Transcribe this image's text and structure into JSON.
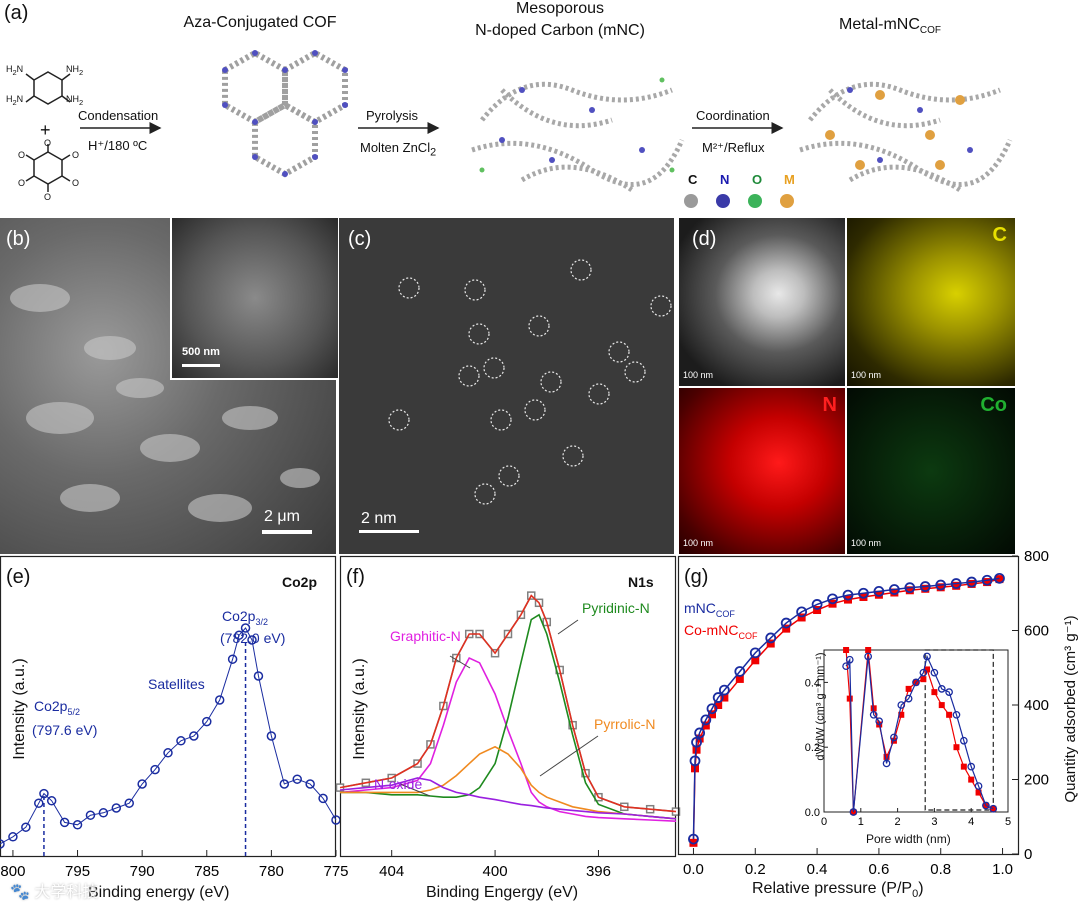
{
  "panels": {
    "a": {
      "label": "(a)"
    },
    "b": {
      "label": "(b)"
    },
    "c": {
      "label": "(c)"
    },
    "d": {
      "label": "(d)"
    },
    "e": {
      "label": "(e)"
    },
    "f": {
      "label": "(f)"
    },
    "g": {
      "label": "(g)"
    }
  },
  "scheme": {
    "title1": "Aza-Conjugated COF",
    "title2_line1": "Mesoporous",
    "title2_line2": "N-doped Carbon (mNC)",
    "title3_main": "Metal-mNC",
    "title3_sub": "COF",
    "step1_top": "Condensation",
    "step1_bottom": "H⁺/180 ºC",
    "step2_top": "Pyrolysis",
    "step2_bottom_main": "Molten ZnCl",
    "step2_bottom_sub": "2",
    "step3_top": "Coordination",
    "step3_bottom": "M²⁺/Reflux",
    "reagent_plus": "+",
    "nh2": "NH",
    "nh2_sub": "2",
    "o": "O",
    "legend": [
      {
        "label": "C",
        "color": "#777777",
        "ball": "#9a9a9a"
      },
      {
        "label": "N",
        "color": "#1a1ab0",
        "ball": "#3a3aa8"
      },
      {
        "label": "O",
        "color": "#1f8a3a",
        "ball": "#3cb35a"
      },
      {
        "label": "M",
        "color": "#e8a020",
        "ball": "#e0a040"
      }
    ]
  },
  "images": {
    "b_inset_scale": "500 nm",
    "b_scale": "2 μm",
    "c_scale": "2 nm",
    "d_scale": "100 nm",
    "d_maps": [
      {
        "label": "C",
        "color": "#e8e000"
      },
      {
        "label": "N",
        "color": "#ff2020"
      },
      {
        "label": "Co",
        "color": "#20b030"
      }
    ]
  },
  "chart_data": [
    {
      "type": "line",
      "panel": "e",
      "title": "Co2p",
      "xlabel": "Binding energy (eV)",
      "ylabel": "Intensity (a.u.)",
      "xlim": [
        801,
        775
      ],
      "xticks": [
        800,
        795,
        790,
        785,
        780,
        775
      ],
      "x": [
        801,
        800,
        799,
        798,
        797.6,
        797,
        796,
        795,
        794,
        793,
        792,
        791,
        790,
        789,
        788,
        787,
        786,
        785,
        784,
        783,
        782.5,
        782,
        781.5,
        781,
        780,
        779,
        778,
        777,
        776,
        775
      ],
      "values": [
        0.05,
        0.08,
        0.12,
        0.22,
        0.26,
        0.23,
        0.14,
        0.13,
        0.17,
        0.18,
        0.2,
        0.22,
        0.3,
        0.36,
        0.43,
        0.48,
        0.5,
        0.56,
        0.65,
        0.82,
        0.92,
        0.95,
        0.9,
        0.75,
        0.5,
        0.3,
        0.32,
        0.3,
        0.24,
        0.15
      ],
      "annotations": [
        {
          "text_main": "Co2p",
          "text_sub": "3/2",
          "value": "(782.0 eV)",
          "x": 782.0
        },
        {
          "text_main": "Co2p",
          "text_sub": "5/2",
          "value": "(797.6 eV)",
          "x": 797.6
        },
        {
          "text": "Satellites"
        }
      ]
    },
    {
      "type": "line",
      "panel": "f",
      "title": "N1s",
      "xlabel": "Binding Engergy (eV)",
      "ylabel": "Intensity (a.u.)",
      "xlim": [
        406,
        393
      ],
      "xticks": [
        404,
        400,
        396
      ],
      "x": [
        406,
        405,
        404,
        403,
        402.5,
        402,
        401.5,
        401,
        400.6,
        400,
        399.5,
        399,
        398.6,
        398.3,
        398,
        397.5,
        397,
        396.5,
        396,
        395,
        394,
        393
      ],
      "series": [
        {
          "name": "data",
          "color": "#808080",
          "values": [
            0.16,
            0.18,
            0.2,
            0.26,
            0.34,
            0.5,
            0.7,
            0.8,
            0.8,
            0.72,
            0.8,
            0.88,
            0.96,
            0.93,
            0.85,
            0.65,
            0.42,
            0.22,
            0.12,
            0.08,
            0.07,
            0.06
          ]
        },
        {
          "name": "fit",
          "color": "#e03020",
          "values": [
            0.16,
            0.18,
            0.2,
            0.26,
            0.34,
            0.5,
            0.7,
            0.8,
            0.8,
            0.72,
            0.8,
            0.88,
            0.96,
            0.93,
            0.85,
            0.65,
            0.42,
            0.22,
            0.12,
            0.08,
            0.07,
            0.06
          ]
        },
        {
          "name": "Graphitic-N",
          "color": "#e020e0",
          "values": [
            0.14,
            0.15,
            0.16,
            0.19,
            0.26,
            0.42,
            0.6,
            0.7,
            0.68,
            0.55,
            0.4,
            0.26,
            0.14,
            0.1,
            0.08,
            0.06,
            0.05,
            0.04,
            0.035,
            0.03,
            0.025,
            0.02
          ]
        },
        {
          "name": "Pyridinic-N",
          "color": "#1e8a1e",
          "values": [
            0.14,
            0.14,
            0.13,
            0.13,
            0.125,
            0.12,
            0.12,
            0.13,
            0.16,
            0.26,
            0.45,
            0.68,
            0.86,
            0.88,
            0.8,
            0.6,
            0.38,
            0.18,
            0.09,
            0.05,
            0.04,
            0.03
          ]
        },
        {
          "name": "Pyrrolic-N",
          "color": "#f08a20",
          "values": [
            0.14,
            0.14,
            0.14,
            0.14,
            0.15,
            0.17,
            0.21,
            0.26,
            0.3,
            0.33,
            0.3,
            0.24,
            0.17,
            0.14,
            0.12,
            0.1,
            0.08,
            0.07,
            0.06,
            0.05,
            0.04,
            0.03
          ]
        },
        {
          "name": "N-oxide",
          "color": "#9a20e0",
          "values": [
            0.15,
            0.16,
            0.17,
            0.2,
            0.19,
            0.16,
            0.14,
            0.13,
            0.12,
            0.11,
            0.1,
            0.09,
            0.085,
            0.08,
            0.075,
            0.07,
            0.065,
            0.06,
            0.055,
            0.05,
            0.04,
            0.03
          ]
        }
      ],
      "labels": [
        "Graphitic-N",
        "Pyridinic-N",
        "Pyrrolic-N",
        "N-oxide"
      ]
    },
    {
      "type": "scatter",
      "panel": "g",
      "xlabel_main": "Relative pressure (P/P",
      "xlabel_sub": "0",
      "xlabel_end": ")",
      "ylabel_right": "Quantity adsorbed (cm³ g⁻¹)",
      "xlim": [
        -0.05,
        1.05
      ],
      "ylim": [
        0,
        800
      ],
      "xticks": [
        0.0,
        0.2,
        0.4,
        0.6,
        0.8,
        1.0
      ],
      "yticks": [
        0,
        200,
        400,
        600,
        800
      ],
      "series": [
        {
          "name_main": "mNC",
          "name_sub": "COF",
          "color": "#1a2ca0",
          "marker": "circle",
          "x": [
            0,
            0.005,
            0.01,
            0.02,
            0.04,
            0.06,
            0.08,
            0.1,
            0.15,
            0.2,
            0.25,
            0.3,
            0.35,
            0.4,
            0.45,
            0.5,
            0.55,
            0.6,
            0.65,
            0.7,
            0.75,
            0.8,
            0.85,
            0.9,
            0.95,
            0.99
          ],
          "values": [
            40,
            250,
            300,
            325,
            360,
            390,
            420,
            440,
            490,
            540,
            580,
            620,
            650,
            670,
            685,
            695,
            700,
            705,
            710,
            715,
            718,
            722,
            726,
            730,
            735,
            740
          ]
        },
        {
          "name_main": "Co-mNC",
          "name_sub": "COF",
          "color": "#f00000",
          "marker": "square",
          "x": [
            0,
            0.005,
            0.01,
            0.02,
            0.04,
            0.06,
            0.08,
            0.1,
            0.15,
            0.2,
            0.25,
            0.3,
            0.35,
            0.4,
            0.45,
            0.5,
            0.55,
            0.6,
            0.65,
            0.7,
            0.75,
            0.8,
            0.85,
            0.9,
            0.95,
            0.99
          ],
          "values": [
            30,
            230,
            280,
            310,
            345,
            375,
            400,
            420,
            470,
            520,
            565,
            605,
            635,
            655,
            672,
            683,
            690,
            696,
            702,
            708,
            712,
            716,
            720,
            725,
            730,
            738
          ]
        }
      ],
      "inset": {
        "xlabel": "Pore width (nm)",
        "ylabel": "dV/dW (cm³ g⁻¹ nm⁻¹)",
        "xlim": [
          0,
          5
        ],
        "ylim": [
          0,
          0.5
        ],
        "xticks": [
          0,
          1,
          2,
          3,
          4,
          5
        ],
        "yticks": [
          0.0,
          0.2,
          0.4
        ],
        "series": [
          {
            "name": "mNC",
            "color": "#1a2ca0",
            "x": [
              0.6,
              0.7,
              0.8,
              1.2,
              1.35,
              1.5,
              1.7,
              1.9,
              2.1,
              2.3,
              2.5,
              2.7,
              2.8,
              3.0,
              3.2,
              3.4,
              3.6,
              3.8,
              4.0,
              4.2,
              4.4,
              4.6
            ],
            "values": [
              0.45,
              0.47,
              0.0,
              0.48,
              0.3,
              0.28,
              0.15,
              0.23,
              0.33,
              0.35,
              0.4,
              0.43,
              0.48,
              0.43,
              0.38,
              0.37,
              0.3,
              0.22,
              0.14,
              0.08,
              0.02,
              0.01
            ]
          },
          {
            "name": "Co-mNC",
            "color": "#f00000",
            "x": [
              0.6,
              0.7,
              0.8,
              1.2,
              1.35,
              1.5,
              1.7,
              1.9,
              2.1,
              2.3,
              2.5,
              2.7,
              2.8,
              3.0,
              3.2,
              3.4,
              3.6,
              3.8,
              4.0,
              4.2,
              4.4,
              4.6
            ],
            "values": [
              0.5,
              0.35,
              0.0,
              0.5,
              0.32,
              0.27,
              0.17,
              0.22,
              0.3,
              0.38,
              0.4,
              0.41,
              0.44,
              0.37,
              0.33,
              0.3,
              0.2,
              0.14,
              0.1,
              0.06,
              0.02,
              0.01
            ]
          }
        ]
      }
    }
  ],
  "watermark": "大学科技"
}
